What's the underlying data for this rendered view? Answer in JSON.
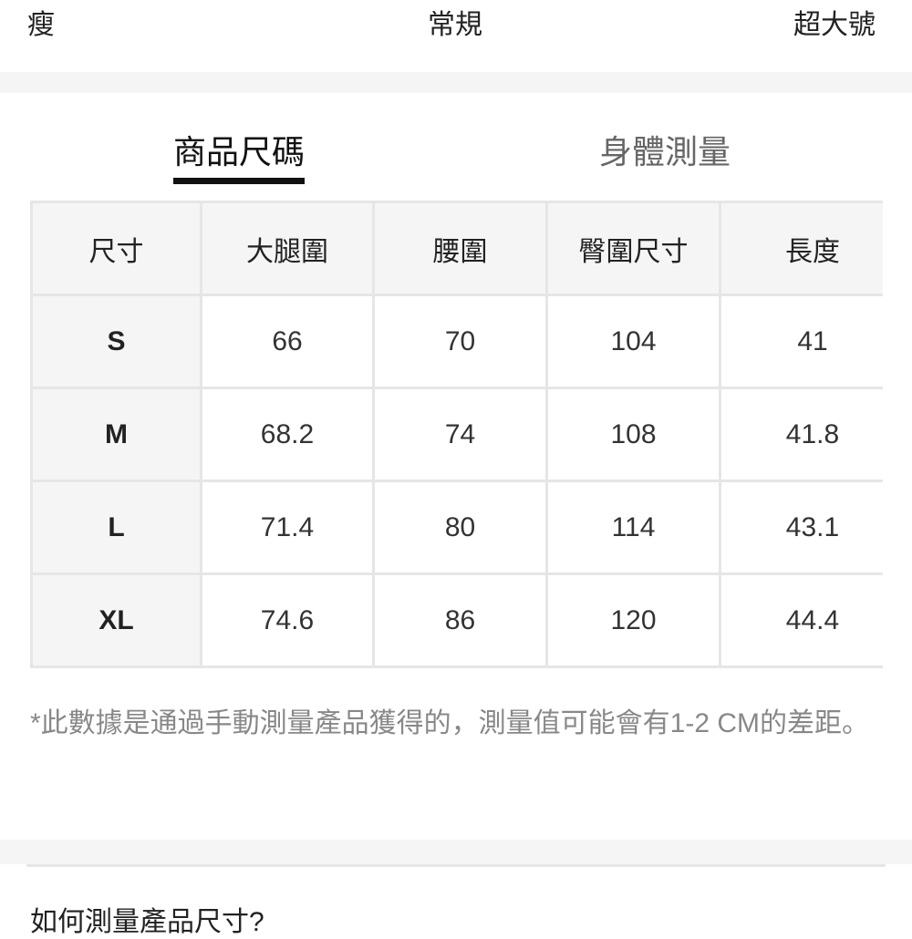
{
  "fit_scale": {
    "left": "瘦",
    "middle": "常規",
    "right": "超大號"
  },
  "tabs": [
    {
      "label": "商品尺碼",
      "active": true
    },
    {
      "label": "身體測量",
      "active": false
    }
  ],
  "size_table": {
    "headers": [
      "尺寸",
      "大腿圍",
      "腰圍",
      "臀圍尺寸",
      "長度"
    ],
    "rows": [
      [
        "S",
        "66",
        "70",
        "104",
        "41"
      ],
      [
        "M",
        "68.2",
        "74",
        "108",
        "41.8"
      ],
      [
        "L",
        "71.4",
        "80",
        "114",
        "43.1"
      ],
      [
        "XL",
        "74.6",
        "86",
        "120",
        "44.4"
      ]
    ]
  },
  "note": "*此數據是通過手動測量產品獲得的，測量值可能會有1-2 CM的差距。",
  "how_to_measure_title": "如何測量產品尺寸?",
  "colors": {
    "band": "#f5f5f5",
    "border": "#e6e6e6",
    "active_tab": "#111111",
    "inactive_tab": "#666666",
    "note": "#888888"
  }
}
